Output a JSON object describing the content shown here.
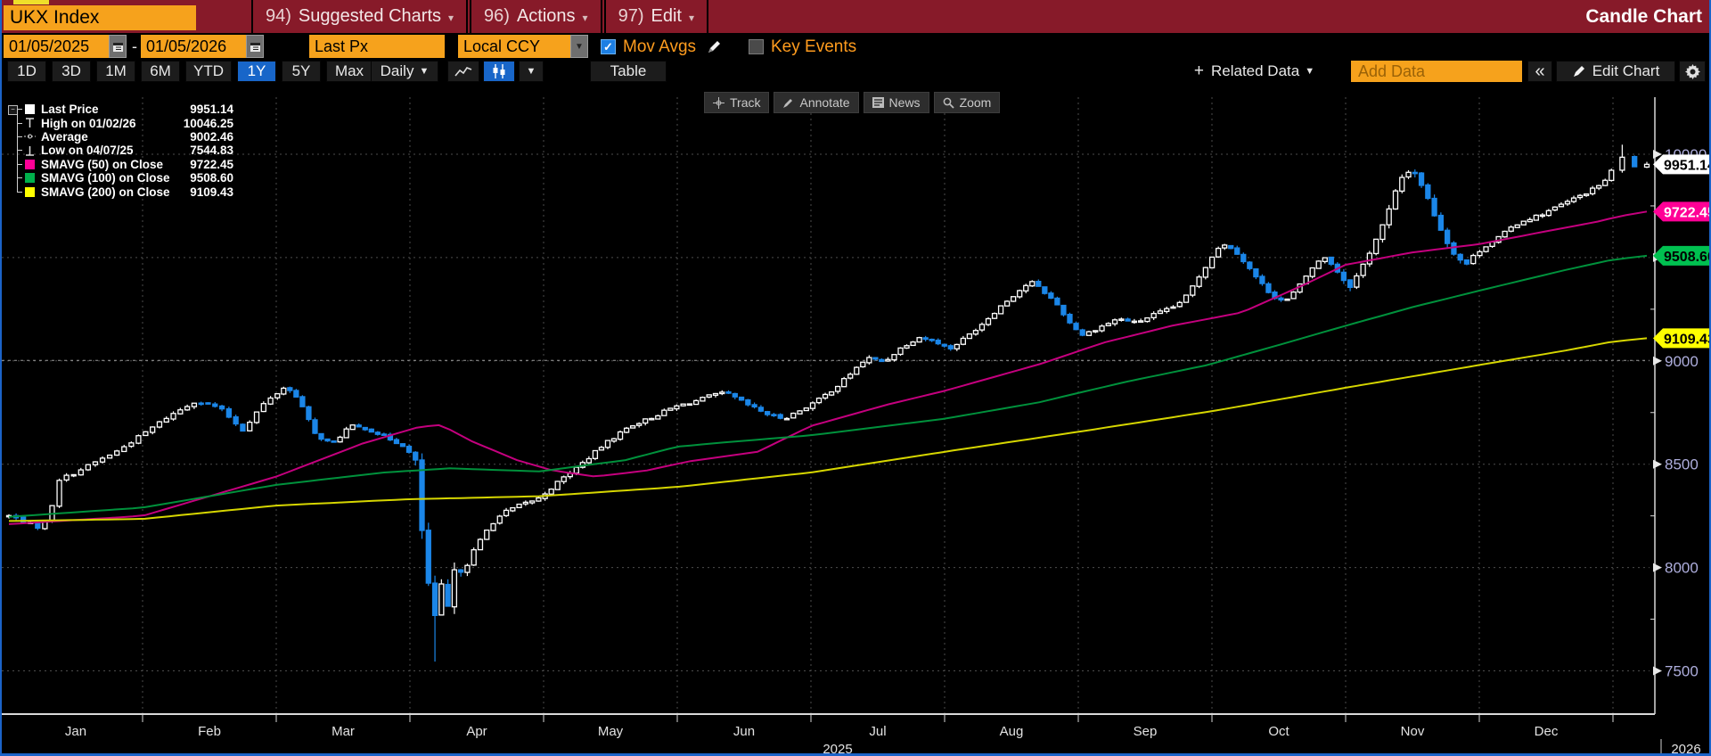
{
  "window": {
    "security": "UKX Index",
    "chart_type_label": "Candle Chart",
    "menus": [
      {
        "num": "94)",
        "label": "Suggested Charts"
      },
      {
        "num": "96)",
        "label": "Actions"
      },
      {
        "num": "97)",
        "label": "Edit"
      }
    ]
  },
  "controls": {
    "date_from": "01/05/2025",
    "date_dash": "-",
    "date_to": "01/05/2026",
    "price_field": "Last Px",
    "currency_field": "Local CCY",
    "mov_avgs_label": "Mov Avgs",
    "mov_avgs_checked": true,
    "key_events_label": "Key Events",
    "key_events_checked": false
  },
  "toolbar": {
    "ranges": [
      "1D",
      "3D",
      "1M",
      "6M",
      "YTD",
      "1Y",
      "5Y",
      "Max"
    ],
    "active_range": "1Y",
    "period_label": "Daily",
    "table_label": "Table",
    "related_data_label": "Related Data",
    "add_data_placeholder": "Add Data",
    "collapse_label": "«",
    "edit_chart_label": "Edit Chart"
  },
  "chart_buttons": [
    {
      "id": "track",
      "label": "Track"
    },
    {
      "id": "annotate",
      "label": "Annotate"
    },
    {
      "id": "news",
      "label": "News"
    },
    {
      "id": "zoom",
      "label": "Zoom"
    }
  ],
  "legend": {
    "rows": [
      {
        "icon": "square",
        "color": "#ffffff",
        "label": "Last Price",
        "value": "9951.14"
      },
      {
        "icon": "high",
        "color": "#ffffff",
        "label": "High on 01/02/26",
        "value": "10046.25"
      },
      {
        "icon": "average",
        "color": "#ffffff",
        "label": "Average",
        "value": "9002.46"
      },
      {
        "icon": "low",
        "color": "#ffffff",
        "label": "Low on 04/07/25",
        "value": "7544.83"
      },
      {
        "icon": "square",
        "color": "#ff0096",
        "label": "SMAVG (50) on Close",
        "value": "9722.45"
      },
      {
        "icon": "square",
        "color": "#00b14c",
        "label": "SMAVG (100) on Close",
        "value": "9508.60"
      },
      {
        "icon": "square",
        "color": "#ffff00",
        "label": "SMAVG (200) on Close",
        "value": "9109.43"
      }
    ]
  },
  "chart_data": {
    "type": "candlestick",
    "title": "UKX Index 1Y Daily Candle Chart",
    "x_range": {
      "start": "01/05/2025",
      "end": "01/05/2026"
    },
    "month_labels": [
      "Jan",
      "Feb",
      "Mar",
      "Apr",
      "May",
      "Jun",
      "Jul",
      "Aug",
      "Sep",
      "Oct",
      "Nov",
      "Dec"
    ],
    "year_label_left": "2025",
    "year_label_right": "2026",
    "y_ticks": [
      7500,
      8000,
      8500,
      9000,
      9500,
      10000
    ],
    "y_minor_step": 250,
    "axis_label_color": "#aeaedd",
    "up_color": "#ffffff",
    "down_color": "#1b86e8",
    "last_price": 9951.14,
    "high_point": {
      "date": "01/02/26",
      "value": 10046.25
    },
    "low_point": {
      "date": "04/07/25",
      "value": 7544.83
    },
    "average": 9002.46,
    "close_waypoints": [
      [
        0,
        8250
      ],
      [
        3,
        8225
      ],
      [
        6,
        8195
      ],
      [
        8,
        8235
      ],
      [
        10,
        8425
      ],
      [
        13,
        8455
      ],
      [
        17,
        8505
      ],
      [
        22,
        8565
      ],
      [
        27,
        8645
      ],
      [
        32,
        8725
      ],
      [
        38,
        8805
      ],
      [
        43,
        8775
      ],
      [
        48,
        8665
      ],
      [
        52,
        8785
      ],
      [
        57,
        8875
      ],
      [
        60,
        8825
      ],
      [
        64,
        8645
      ],
      [
        68,
        8595
      ],
      [
        72,
        8685
      ],
      [
        76,
        8672
      ],
      [
        80,
        8635
      ],
      [
        85,
        8585
      ],
      [
        88,
        8475
      ],
      [
        89,
        8055
      ],
      [
        92,
        7702
      ],
      [
        93,
        7915
      ],
      [
        94,
        7680
      ],
      [
        95,
        7915
      ],
      [
        96,
        7968
      ],
      [
        99,
        8035
      ],
      [
        101,
        8105
      ],
      [
        104,
        8205
      ],
      [
        107,
        8265
      ],
      [
        111,
        8305
      ],
      [
        115,
        8335
      ],
      [
        120,
        8425
      ],
      [
        125,
        8505
      ],
      [
        130,
        8595
      ],
      [
        136,
        8685
      ],
      [
        141,
        8725
      ],
      [
        146,
        8775
      ],
      [
        151,
        8805
      ],
      [
        155,
        8835
      ],
      [
        158,
        8845
      ],
      [
        163,
        8785
      ],
      [
        168,
        8735
      ],
      [
        171,
        8722
      ],
      [
        175,
        8765
      ],
      [
        179,
        8815
      ],
      [
        183,
        8875
      ],
      [
        187,
        8955
      ],
      [
        190,
        9015
      ],
      [
        194,
        8995
      ],
      [
        198,
        9065
      ],
      [
        202,
        9115
      ],
      [
        206,
        9095
      ],
      [
        209,
        9055
      ],
      [
        213,
        9115
      ],
      [
        217,
        9185
      ],
      [
        221,
        9265
      ],
      [
        225,
        9335
      ],
      [
        228,
        9385
      ],
      [
        231,
        9335
      ],
      [
        234,
        9275
      ],
      [
        237,
        9185
      ],
      [
        240,
        9125
      ],
      [
        244,
        9165
      ],
      [
        248,
        9205
      ],
      [
        252,
        9185
      ],
      [
        256,
        9225
      ],
      [
        260,
        9255
      ],
      [
        263,
        9305
      ],
      [
        266,
        9405
      ],
      [
        269,
        9505
      ],
      [
        271,
        9565
      ],
      [
        274,
        9545
      ],
      [
        277,
        9465
      ],
      [
        280,
        9385
      ],
      [
        283,
        9315
      ],
      [
        286,
        9285
      ],
      [
        289,
        9355
      ],
      [
        292,
        9445
      ],
      [
        295,
        9505
      ],
      [
        297,
        9465
      ],
      [
        299,
        9405
      ],
      [
        301,
        9365
      ],
      [
        303,
        9425
      ],
      [
        306,
        9555
      ],
      [
        309,
        9685
      ],
      [
        311,
        9805
      ],
      [
        313,
        9905
      ],
      [
        315,
        9930
      ],
      [
        317,
        9855
      ],
      [
        319,
        9755
      ],
      [
        321,
        9655
      ],
      [
        323,
        9565
      ],
      [
        325,
        9505
      ],
      [
        327,
        9465
      ],
      [
        329,
        9515
      ],
      [
        332,
        9565
      ],
      [
        335,
        9605
      ],
      [
        338,
        9655
      ],
      [
        341,
        9685
      ],
      [
        344,
        9705
      ],
      [
        347,
        9735
      ],
      [
        350,
        9765
      ],
      [
        353,
        9795
      ],
      [
        356,
        9825
      ],
      [
        358,
        9855
      ],
      [
        360,
        9885
      ],
      [
        362,
        9988
      ],
      [
        363,
        9940
      ],
      [
        365,
        9951.14
      ]
    ],
    "smavg50": {
      "name": "SMAVG (50) on Close",
      "line_color": "#c4007e",
      "tag_color": "#ff0096",
      "tag_text": "#ffffff",
      "last": 9722.45,
      "waypoints": [
        [
          0,
          8210
        ],
        [
          27,
          8250
        ],
        [
          55,
          8440
        ],
        [
          75,
          8600
        ],
        [
          88,
          8680
        ],
        [
          93,
          8690
        ],
        [
          100,
          8610
        ],
        [
          110,
          8520
        ],
        [
          118,
          8470
        ],
        [
          128,
          8440
        ],
        [
          140,
          8470
        ],
        [
          150,
          8515
        ],
        [
          165,
          8560
        ],
        [
          177,
          8685
        ],
        [
          195,
          8790
        ],
        [
          208,
          8855
        ],
        [
          231,
          8990
        ],
        [
          245,
          9090
        ],
        [
          260,
          9170
        ],
        [
          276,
          9235
        ],
        [
          290,
          9365
        ],
        [
          300,
          9465
        ],
        [
          315,
          9525
        ],
        [
          330,
          9565
        ],
        [
          345,
          9625
        ],
        [
          359,
          9680
        ],
        [
          365,
          9722.45
        ]
      ]
    },
    "smavg100": {
      "name": "SMAVG (100) on Close",
      "line_color": "#00913c",
      "tag_color": "#00c050",
      "tag_text": "#000000",
      "last": 9508.6,
      "waypoints": [
        [
          0,
          8245
        ],
        [
          27,
          8290
        ],
        [
          55,
          8400
        ],
        [
          80,
          8460
        ],
        [
          95,
          8480
        ],
        [
          115,
          8465
        ],
        [
          135,
          8520
        ],
        [
          147,
          8585
        ],
        [
          160,
          8610
        ],
        [
          177,
          8640
        ],
        [
          208,
          8720
        ],
        [
          230,
          8800
        ],
        [
          250,
          8900
        ],
        [
          268,
          8980
        ],
        [
          285,
          9080
        ],
        [
          300,
          9170
        ],
        [
          315,
          9260
        ],
        [
          330,
          9340
        ],
        [
          350,
          9440
        ],
        [
          365,
          9508.6
        ]
      ]
    },
    "smavg200": {
      "name": "SMAVG (200) on Close",
      "line_color": "#d6d600",
      "tag_color": "#ffff00",
      "tag_text": "#000000",
      "last": 9109.43,
      "waypoints": [
        [
          0,
          8225
        ],
        [
          27,
          8235
        ],
        [
          55,
          8300
        ],
        [
          85,
          8330
        ],
        [
          115,
          8345
        ],
        [
          147,
          8390
        ],
        [
          177,
          8460
        ],
        [
          208,
          8560
        ],
        [
          240,
          8660
        ],
        [
          270,
          8760
        ],
        [
          300,
          8870
        ],
        [
          330,
          8980
        ],
        [
          350,
          9050
        ],
        [
          365,
          9109.43
        ]
      ]
    },
    "price_tags": [
      {
        "value": 9951.14,
        "text": "9951.14",
        "bg": "#ffffff",
        "fg": "#000000"
      },
      {
        "value": 9722.45,
        "text": "9722.45",
        "bg": "#ff0096",
        "fg": "#ffffff"
      },
      {
        "value": 9508.6,
        "text": "9508.60",
        "bg": "#00c050",
        "fg": "#000000"
      },
      {
        "value": 9109.43,
        "text": "9109.43",
        "bg": "#ffff00",
        "fg": "#000000"
      }
    ]
  }
}
